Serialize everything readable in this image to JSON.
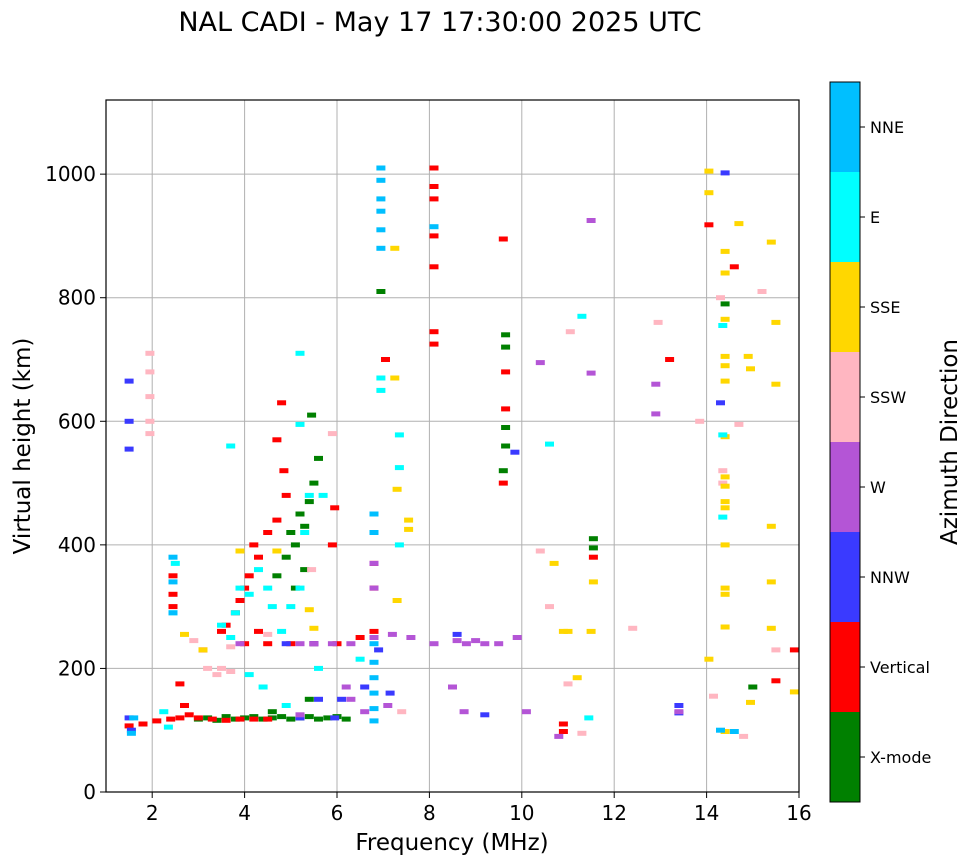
{
  "chart_data": {
    "type": "scatter",
    "title": "NAL CADI - May 17 17:30:00 2025 UTC",
    "xlabel": "Frequency (MHz)",
    "ylabel": "Virtual height (km)",
    "xlim": [
      1,
      16
    ],
    "ylim": [
      0,
      1120
    ],
    "xticks": [
      2,
      4,
      6,
      8,
      10,
      12,
      14,
      16
    ],
    "yticks": [
      0,
      200,
      400,
      600,
      800,
      1000
    ],
    "grid": true,
    "colorbar": {
      "label": "Azimuth Direction",
      "entries": [
        {
          "name": "X-mode",
          "color": "#008000"
        },
        {
          "name": "Vertical",
          "color": "#ff0000"
        },
        {
          "name": "NNW",
          "color": "#3a3aff"
        },
        {
          "name": "W",
          "color": "#b455d6"
        },
        {
          "name": "SSW",
          "color": "#ffb6c1"
        },
        {
          "name": "SSE",
          "color": "#ffd700"
        },
        {
          "name": "E",
          "color": "#00ffff"
        },
        {
          "name": "NNE",
          "color": "#00bfff"
        }
      ]
    },
    "series": [
      {
        "name": "X-mode",
        "points": [
          [
            3.0,
            118
          ],
          [
            3.2,
            120
          ],
          [
            3.4,
            116
          ],
          [
            3.6,
            122
          ],
          [
            3.8,
            118
          ],
          [
            4.0,
            120
          ],
          [
            4.2,
            122
          ],
          [
            4.4,
            118
          ],
          [
            4.6,
            120
          ],
          [
            4.8,
            122
          ],
          [
            5.0,
            118
          ],
          [
            5.2,
            120
          ],
          [
            5.4,
            122
          ],
          [
            5.6,
            118
          ],
          [
            5.8,
            120
          ],
          [
            6.0,
            122
          ],
          [
            6.2,
            118
          ],
          [
            4.7,
            350
          ],
          [
            4.9,
            380
          ],
          [
            5.0,
            420
          ],
          [
            5.1,
            400
          ],
          [
            5.2,
            450
          ],
          [
            5.3,
            430
          ],
          [
            5.4,
            470
          ],
          [
            5.5,
            500
          ],
          [
            5.6,
            540
          ],
          [
            5.3,
            360
          ],
          [
            5.1,
            330
          ],
          [
            6.95,
            810
          ],
          [
            9.65,
            740
          ],
          [
            9.65,
            720
          ],
          [
            9.65,
            590
          ],
          [
            9.65,
            560
          ],
          [
            9.6,
            520
          ],
          [
            11.55,
            410
          ],
          [
            11.55,
            395
          ],
          [
            14.4,
            790
          ],
          [
            15.0,
            170
          ],
          [
            4.6,
            130
          ],
          [
            5.4,
            150
          ],
          [
            5.45,
            610
          ]
        ]
      },
      {
        "name": "Vertical",
        "points": [
          [
            1.5,
            107
          ],
          [
            1.8,
            110
          ],
          [
            2.1,
            115
          ],
          [
            2.4,
            118
          ],
          [
            2.6,
            120
          ],
          [
            2.8,
            125
          ],
          [
            3.0,
            120
          ],
          [
            3.3,
            118
          ],
          [
            3.6,
            116
          ],
          [
            3.9,
            118
          ],
          [
            4.2,
            118
          ],
          [
            4.5,
            118
          ],
          [
            2.7,
            140
          ],
          [
            2.6,
            175
          ],
          [
            3.1,
            230
          ],
          [
            3.6,
            270
          ],
          [
            3.8,
            290
          ],
          [
            3.9,
            310
          ],
          [
            4.0,
            330
          ],
          [
            4.1,
            350
          ],
          [
            4.3,
            380
          ],
          [
            4.2,
            400
          ],
          [
            4.5,
            420
          ],
          [
            4.7,
            440
          ],
          [
            4.9,
            480
          ],
          [
            4.85,
            520
          ],
          [
            4.7,
            570
          ],
          [
            4.8,
            630
          ],
          [
            4.0,
            240
          ],
          [
            4.5,
            240
          ],
          [
            5.0,
            240
          ],
          [
            5.5,
            240
          ],
          [
            6.0,
            240
          ],
          [
            2.45,
            350
          ],
          [
            2.45,
            320
          ],
          [
            2.45,
            300
          ],
          [
            6.8,
            330
          ],
          [
            6.8,
            370
          ],
          [
            6.8,
            260
          ],
          [
            6.5,
            250
          ],
          [
            7.05,
            700
          ],
          [
            8.1,
            1010
          ],
          [
            8.1,
            980
          ],
          [
            8.1,
            960
          ],
          [
            8.1,
            900
          ],
          [
            8.1,
            850
          ],
          [
            8.1,
            745
          ],
          [
            8.1,
            725
          ],
          [
            9.65,
            680
          ],
          [
            9.65,
            620
          ],
          [
            9.6,
            500
          ],
          [
            9.6,
            895
          ],
          [
            10.9,
            110
          ],
          [
            10.9,
            98
          ],
          [
            11.55,
            380
          ],
          [
            13.2,
            700
          ],
          [
            14.05,
            918
          ],
          [
            14.6,
            850
          ],
          [
            15.5,
            180
          ],
          [
            15.9,
            230
          ],
          [
            5.95,
            460
          ],
          [
            5.9,
            400
          ],
          [
            3.5,
            260
          ],
          [
            4.3,
            260
          ]
        ]
      },
      {
        "name": "NNW",
        "points": [
          [
            1.5,
            665
          ],
          [
            1.5,
            600
          ],
          [
            1.5,
            555
          ],
          [
            9.85,
            550
          ],
          [
            14.3,
            630
          ],
          [
            14.4,
            1002
          ],
          [
            5.6,
            150
          ],
          [
            6.1,
            150
          ],
          [
            6.6,
            170
          ],
          [
            7.15,
            160
          ],
          [
            8.6,
            255
          ],
          [
            4.9,
            240
          ],
          [
            5.5,
            240
          ],
          [
            6.9,
            230
          ],
          [
            13.4,
            140
          ],
          [
            13.4,
            128
          ],
          [
            9.2,
            125
          ],
          [
            5.2,
            120
          ],
          [
            5.95,
            120
          ],
          [
            1.5,
            120
          ],
          [
            1.55,
            100
          ]
        ]
      },
      {
        "name": "W",
        "points": [
          [
            5.9,
            240
          ],
          [
            6.3,
            240
          ],
          [
            6.8,
            250
          ],
          [
            7.2,
            255
          ],
          [
            7.6,
            250
          ],
          [
            8.1,
            240
          ],
          [
            8.6,
            245
          ],
          [
            8.8,
            240
          ],
          [
            9.0,
            245
          ],
          [
            9.2,
            240
          ],
          [
            9.5,
            240
          ],
          [
            9.9,
            250
          ],
          [
            10.1,
            130
          ],
          [
            6.8,
            330
          ],
          [
            6.8,
            370
          ],
          [
            5.5,
            240
          ],
          [
            6.2,
            170
          ],
          [
            6.3,
            150
          ],
          [
            6.6,
            130
          ],
          [
            7.1,
            140
          ],
          [
            10.4,
            695
          ],
          [
            11.5,
            678
          ],
          [
            11.5,
            925
          ],
          [
            12.9,
            660
          ],
          [
            12.9,
            612
          ],
          [
            13.4,
            130
          ],
          [
            8.5,
            170
          ],
          [
            8.75,
            130
          ],
          [
            10.8,
            90
          ],
          [
            3.9,
            240
          ],
          [
            5.2,
            240
          ],
          [
            5.2,
            125
          ]
        ]
      },
      {
        "name": "SSW",
        "points": [
          [
            1.95,
            710
          ],
          [
            1.95,
            680
          ],
          [
            1.95,
            640
          ],
          [
            1.95,
            600
          ],
          [
            1.95,
            580
          ],
          [
            3.2,
            200
          ],
          [
            3.5,
            200
          ],
          [
            3.4,
            190
          ],
          [
            3.7,
            195
          ],
          [
            5.45,
            360
          ],
          [
            5.9,
            580
          ],
          [
            7.4,
            130
          ],
          [
            10.6,
            300
          ],
          [
            10.4,
            390
          ],
          [
            11.0,
            175
          ],
          [
            11.3,
            95
          ],
          [
            12.4,
            265
          ],
          [
            12.95,
            760
          ],
          [
            13.85,
            600
          ],
          [
            14.15,
            155
          ],
          [
            14.35,
            520
          ],
          [
            14.35,
            500
          ],
          [
            14.3,
            800
          ],
          [
            14.7,
            595
          ],
          [
            14.8,
            90
          ],
          [
            15.2,
            810
          ],
          [
            15.5,
            230
          ],
          [
            11.05,
            745
          ],
          [
            3.7,
            235
          ],
          [
            2.9,
            245
          ],
          [
            4.5,
            255
          ]
        ]
      },
      {
        "name": "SSE",
        "points": [
          [
            7.55,
            440
          ],
          [
            7.55,
            425
          ],
          [
            7.25,
            880
          ],
          [
            7.25,
            670
          ],
          [
            7.3,
            490
          ],
          [
            7.3,
            310
          ],
          [
            10.9,
            260
          ],
          [
            10.7,
            370
          ],
          [
            11.0,
            260
          ],
          [
            11.5,
            260
          ],
          [
            11.2,
            185
          ],
          [
            11.55,
            340
          ],
          [
            14.05,
            1005
          ],
          [
            14.05,
            970
          ],
          [
            14.05,
            215
          ],
          [
            14.4,
            875
          ],
          [
            14.4,
            840
          ],
          [
            14.4,
            765
          ],
          [
            14.4,
            705
          ],
          [
            14.4,
            690
          ],
          [
            14.4,
            665
          ],
          [
            14.4,
            575
          ],
          [
            14.4,
            510
          ],
          [
            14.4,
            495
          ],
          [
            14.4,
            470
          ],
          [
            14.4,
            460
          ],
          [
            14.4,
            400
          ],
          [
            14.4,
            330
          ],
          [
            14.4,
            320
          ],
          [
            14.4,
            267
          ],
          [
            14.4,
            98
          ],
          [
            14.7,
            920
          ],
          [
            14.9,
            705
          ],
          [
            14.95,
            685
          ],
          [
            14.95,
            145
          ],
          [
            15.4,
            890
          ],
          [
            15.5,
            760
          ],
          [
            15.5,
            660
          ],
          [
            15.4,
            430
          ],
          [
            15.4,
            340
          ],
          [
            15.4,
            265
          ],
          [
            15.9,
            162
          ],
          [
            3.9,
            390
          ],
          [
            4.7,
            390
          ],
          [
            5.4,
            295
          ],
          [
            5.5,
            265
          ],
          [
            2.7,
            255
          ],
          [
            3.1,
            230
          ]
        ]
      },
      {
        "name": "E",
        "points": [
          [
            2.45,
            290
          ],
          [
            2.5,
            370
          ],
          [
            3.5,
            270
          ],
          [
            3.7,
            250
          ],
          [
            3.8,
            290
          ],
          [
            3.9,
            330
          ],
          [
            4.1,
            320
          ],
          [
            4.3,
            360
          ],
          [
            4.5,
            330
          ],
          [
            4.6,
            300
          ],
          [
            4.8,
            260
          ],
          [
            5.0,
            300
          ],
          [
            5.2,
            330
          ],
          [
            5.3,
            420
          ],
          [
            5.4,
            480
          ],
          [
            5.7,
            480
          ],
          [
            5.2,
            710
          ],
          [
            5.2,
            595
          ],
          [
            3.7,
            560
          ],
          [
            6.95,
            670
          ],
          [
            6.95,
            650
          ],
          [
            7.35,
            525
          ],
          [
            7.35,
            400
          ],
          [
            7.35,
            578
          ],
          [
            10.6,
            563
          ],
          [
            11.3,
            770
          ],
          [
            11.45,
            120
          ],
          [
            14.35,
            755
          ],
          [
            14.35,
            578
          ],
          [
            14.35,
            445
          ],
          [
            4.1,
            190
          ],
          [
            4.4,
            170
          ],
          [
            4.9,
            140
          ],
          [
            5.6,
            200
          ],
          [
            6.5,
            215
          ],
          [
            2.25,
            130
          ],
          [
            2.35,
            105
          ]
        ]
      },
      {
        "name": "NNE",
        "points": [
          [
            6.95,
            1010
          ],
          [
            6.95,
            990
          ],
          [
            6.95,
            960
          ],
          [
            6.95,
            940
          ],
          [
            6.95,
            910
          ],
          [
            6.95,
            880
          ],
          [
            6.8,
            450
          ],
          [
            6.8,
            420
          ],
          [
            6.8,
            240
          ],
          [
            6.8,
            210
          ],
          [
            6.8,
            185
          ],
          [
            6.8,
            160
          ],
          [
            6.8,
            135
          ],
          [
            6.8,
            115
          ],
          [
            2.45,
            380
          ],
          [
            2.45,
            340
          ],
          [
            2.45,
            290
          ],
          [
            8.1,
            915
          ],
          [
            14.3,
            100
          ],
          [
            1.55,
            95
          ],
          [
            1.6,
            120
          ],
          [
            14.6,
            98
          ]
        ]
      }
    ]
  }
}
